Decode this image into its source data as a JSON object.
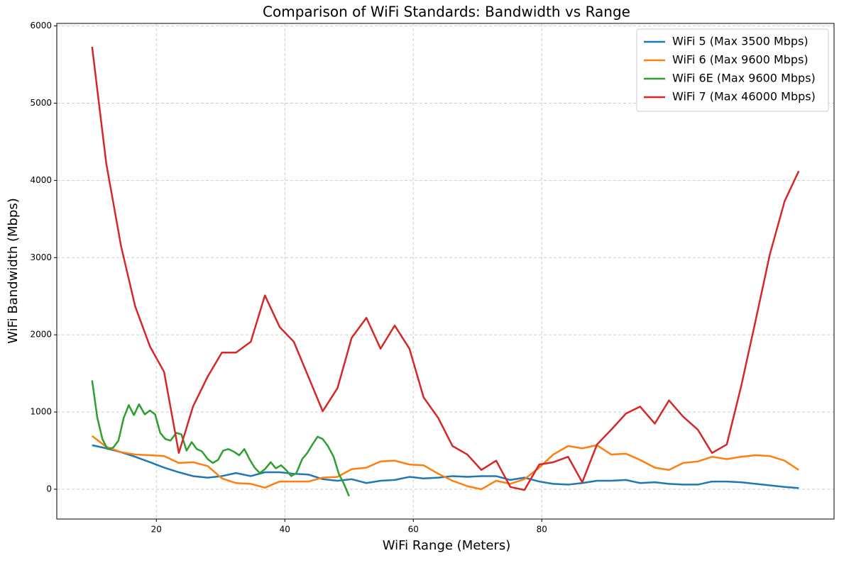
{
  "chart_data": {
    "type": "line",
    "title": "Comparison of WiFi Standards: Bandwidth vs Range",
    "xlabel": "WiFi Range (Meters)",
    "ylabel": "WiFi Bandwidth (Mbps)",
    "x": [
      10,
      12.2,
      14.5,
      16.7,
      19.0,
      21.2,
      23.5,
      25.7,
      28.0,
      30.2,
      32.4,
      34.7,
      36.9,
      39.2,
      41.4,
      43.7,
      45.9,
      48.2,
      50.4,
      52.7,
      54.9,
      57.1,
      59.4,
      61.6,
      63.9,
      66.1,
      68.4,
      70.6,
      72.9,
      75.1,
      77.3,
      79.6,
      81.8,
      84.1,
      86.3,
      88.6,
      90.8,
      93.1,
      95.3,
      97.6,
      99.8,
      102.0,
      104.3,
      106.5,
      108.8,
      111.0,
      113.3,
      115.5,
      117.8,
      120
    ],
    "xlim": [
      4.5,
      125.5
    ],
    "xticks": [
      20,
      40,
      60,
      80
    ],
    "ylim": [
      -386,
      6033
    ],
    "yticks": [
      0,
      1000,
      2000,
      3000,
      4000,
      5000,
      6000
    ],
    "grid": true,
    "legend": "upper right",
    "series": [
      {
        "name": "WiFi 5 (Max 3500 Mbps)",
        "color": "#1f77b4",
        "values": [
          570,
          530,
          480,
          420,
          350,
          280,
          220,
          170,
          150,
          170,
          210,
          170,
          220,
          220,
          200,
          190,
          130,
          110,
          130,
          80,
          110,
          120,
          160,
          140,
          150,
          170,
          160,
          170,
          170,
          120,
          150,
          100,
          70,
          60,
          80,
          110,
          110,
          120,
          80,
          90,
          70,
          60,
          60,
          100,
          100,
          90,
          70,
          50,
          30,
          15
        ]
      },
      {
        "name": "WiFi 6 (Max 9600 Mbps)",
        "color": "#ff7f0e",
        "values": [
          690,
          550,
          480,
          450,
          440,
          430,
          340,
          350,
          300,
          140,
          80,
          70,
          20,
          100,
          100,
          100,
          150,
          160,
          260,
          280,
          360,
          370,
          320,
          310,
          200,
          110,
          40,
          0,
          110,
          70,
          130,
          280,
          450,
          560,
          530,
          570,
          450,
          460,
          380,
          280,
          250,
          340,
          360,
          420,
          390,
          420,
          440,
          430,
          370,
          250
        ]
      },
      {
        "name": "WiFi 6E (Max 9600 Mbps)",
        "color": "#2ca02c",
        "x": [
          10,
          10.8,
          11.6,
          12.4,
          13.3,
          14.1,
          14.9,
          15.7,
          16.5,
          17.3,
          18.2,
          19.0,
          19.8,
          20.6,
          21.4,
          22.2,
          23.1,
          23.9,
          24.7,
          25.5,
          26.3,
          27.1,
          28.0,
          28.8,
          29.6,
          30.4,
          31.2,
          32.0,
          32.9,
          33.7,
          34.5,
          35.3,
          36.1,
          36.9,
          37.8,
          38.6,
          39.4,
          40.2,
          41.0,
          41.8,
          42.7,
          43.5,
          44.3,
          45.1,
          45.9,
          46.7,
          47.6,
          48.4,
          49.2,
          50
        ],
        "values": [
          1410,
          930,
          650,
          520,
          540,
          630,
          920,
          1090,
          960,
          1100,
          970,
          1020,
          970,
          730,
          650,
          630,
          730,
          710,
          500,
          610,
          520,
          490,
          390,
          340,
          380,
          500,
          520,
          490,
          440,
          520,
          390,
          280,
          210,
          260,
          350,
          270,
          310,
          250,
          170,
          210,
          390,
          470,
          580,
          680,
          650,
          560,
          420,
          200,
          70,
          -90
        ]
      },
      {
        "name": "WiFi 7 (Max 46000 Mbps)",
        "color": "#d62728",
        "values": [
          5730,
          4220,
          3150,
          2370,
          1850,
          1520,
          470,
          1070,
          1460,
          1770,
          1770,
          1910,
          2510,
          2100,
          1910,
          1450,
          1010,
          1310,
          1960,
          2220,
          1820,
          2120,
          1820,
          1190,
          920,
          560,
          450,
          250,
          370,
          30,
          -10,
          320,
          350,
          420,
          90,
          580,
          770,
          980,
          1070,
          850,
          1150,
          940,
          770,
          470,
          580,
          1320,
          2190,
          3040,
          3730,
          4120
        ]
      }
    ]
  }
}
